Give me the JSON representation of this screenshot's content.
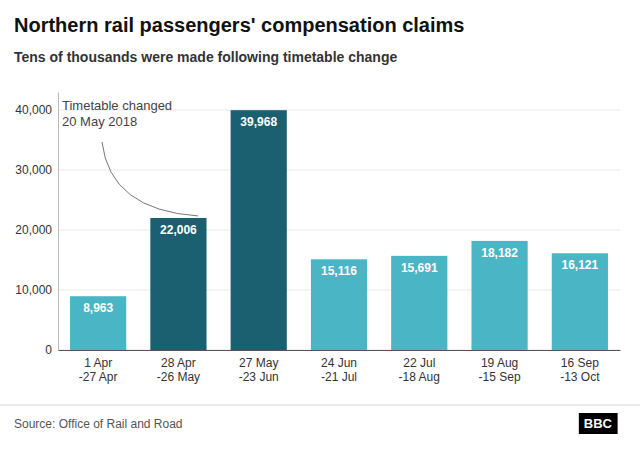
{
  "chart_data": {
    "type": "bar",
    "title": "Northern rail passengers' compensation claims",
    "subtitle": "Tens of thousands were made following timetable change",
    "categories": [
      "1 Apr\n-27 Apr",
      "28 Apr\n-26 May",
      "27 May\n-23 Jun",
      "24 Jun\n-21 Jul",
      "22 Jul\n-18 Aug",
      "19 Aug\n-15 Sep",
      "16 Sep\n-13 Oct"
    ],
    "values": [
      8963,
      22006,
      39968,
      15116,
      15691,
      18182,
      16121
    ],
    "value_labels": [
      "8,963",
      "22,006",
      "39,968",
      "15,116",
      "15,691",
      "18,182",
      "16,121"
    ],
    "colors": [
      "#4ab5c4",
      "#1b6070",
      "#1b6070",
      "#4ab5c4",
      "#4ab5c4",
      "#4ab5c4",
      "#4ab5c4"
    ],
    "data_labels": true,
    "ylim": [
      0,
      43000
    ],
    "yticks": [
      0,
      {
        "value": 10000,
        "label": "10,000"
      },
      {
        "value": 20000,
        "label": "20,000"
      },
      {
        "value": 30000,
        "label": "30,000"
      },
      {
        "value": 40000,
        "label": "40,000"
      }
    ],
    "grid": true,
    "annotation": {
      "text": "Timetable changed\n20 May 2018",
      "category": "28 Apr\n-26 May"
    },
    "source": "Source: Office of Rail and Road",
    "logo": "BBC"
  }
}
